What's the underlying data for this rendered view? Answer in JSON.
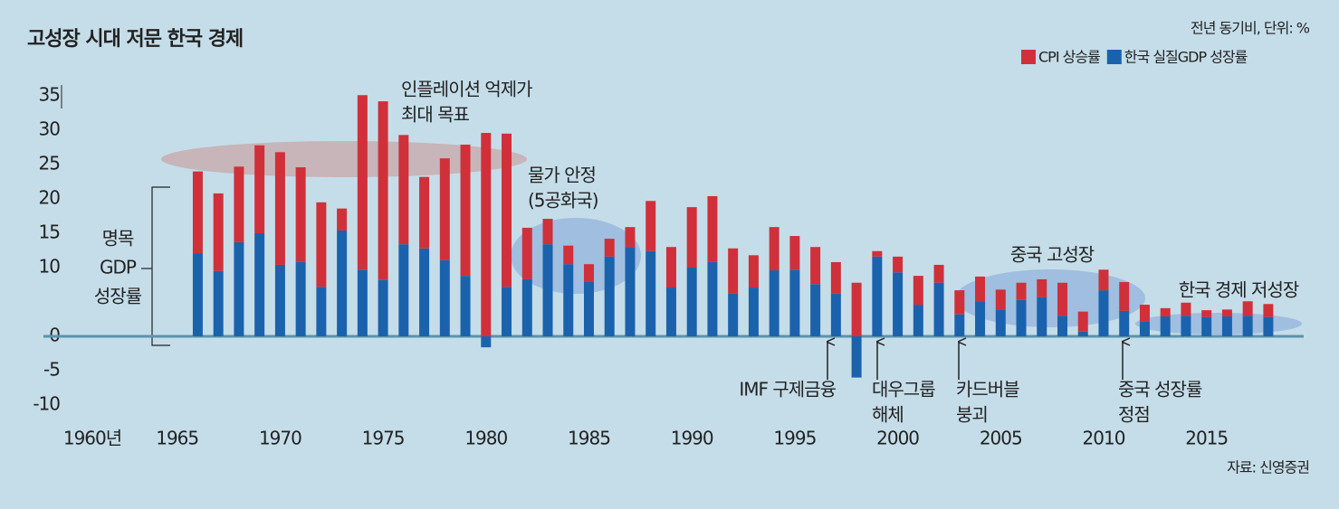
{
  "chart_data": {
    "type": "stacked_bar",
    "title": "고성장 시대 저문 한국 경제",
    "subtitle": "전년 동기비, 단위: %",
    "source": "자료: 신영증권",
    "bracket_label": [
      "명목",
      "GDP",
      "성장률"
    ],
    "x": [
      1966,
      1967,
      1968,
      1969,
      1970,
      1971,
      1972,
      1973,
      1974,
      1975,
      1976,
      1977,
      1978,
      1979,
      1980,
      1981,
      1982,
      1983,
      1984,
      1985,
      1986,
      1987,
      1988,
      1989,
      1990,
      1991,
      1992,
      1993,
      1994,
      1995,
      1996,
      1997,
      1998,
      1999,
      2000,
      2001,
      2002,
      2003,
      2004,
      2005,
      2006,
      2007,
      2008,
      2009,
      2010,
      2011,
      2012,
      2013,
      2014,
      2015,
      2016,
      2017,
      2018
    ],
    "series": [
      {
        "name": "한국 실질GDP 성장률",
        "color": "#1b62ad",
        "values": [
          12.1,
          9.5,
          13.7,
          15.0,
          10.4,
          10.8,
          7.2,
          15.4,
          9.7,
          8.2,
          13.4,
          12.8,
          11.1,
          8.8,
          -1.6,
          7.2,
          8.3,
          13.4,
          10.5,
          7.9,
          11.6,
          13.0,
          12.4,
          7.1,
          10.0,
          10.8,
          6.2,
          7.1,
          9.6,
          9.7,
          7.6,
          6.2,
          -6.0,
          11.6,
          9.3,
          4.6,
          7.8,
          3.2,
          5.0,
          3.9,
          5.3,
          5.7,
          3.0,
          0.7,
          6.7,
          3.7,
          2.2,
          2.9,
          3.0,
          2.8,
          2.9,
          3.0,
          2.8
        ]
      },
      {
        "name": "CPI 상승률",
        "color": "#d0303a",
        "values": [
          11.9,
          11.3,
          11.0,
          12.8,
          16.4,
          13.8,
          12.3,
          3.2,
          25.4,
          26.0,
          15.9,
          10.4,
          14.8,
          19.1,
          29.6,
          22.3,
          7.5,
          3.7,
          2.7,
          2.6,
          2.6,
          2.9,
          7.3,
          5.9,
          8.8,
          9.6,
          6.6,
          4.7,
          6.3,
          4.9,
          5.4,
          4.6,
          7.8,
          0.8,
          2.3,
          4.2,
          2.6,
          3.5,
          3.7,
          2.9,
          2.5,
          2.6,
          4.8,
          2.9,
          3.0,
          4.2,
          2.4,
          1.2,
          1.9,
          1.0,
          1.0,
          2.1,
          1.9
        ]
      }
    ],
    "legend_order": [
      1,
      0
    ],
    "xlim": [
      1960,
      2019.5
    ],
    "xticks": [
      {
        "value": 1960,
        "label": "1960년"
      },
      1965,
      1970,
      1975,
      1980,
      1985,
      1990,
      1995,
      2000,
      2005,
      2010,
      2015
    ],
    "ylim": [
      -10,
      35
    ],
    "yticks": [
      -10,
      -5,
      0,
      10,
      15,
      20,
      25,
      30,
      35
    ],
    "annotations": [
      {
        "lines": [
          "인플레이션 억제가",
          "최대 목표"
        ]
      },
      {
        "lines": [
          "물가 안정",
          "(5공화국)"
        ]
      },
      {
        "lines": [
          "IMF 구제금융"
        ]
      },
      {
        "lines": [
          "대우그룹",
          "해체"
        ]
      },
      {
        "lines": [
          "카드버블",
          "붕괴"
        ]
      },
      {
        "lines": [
          "중국 고성장"
        ]
      },
      {
        "lines": [
          "중국 성장률",
          "정점"
        ]
      },
      {
        "lines": [
          "한국 경제 저성장"
        ]
      }
    ]
  }
}
